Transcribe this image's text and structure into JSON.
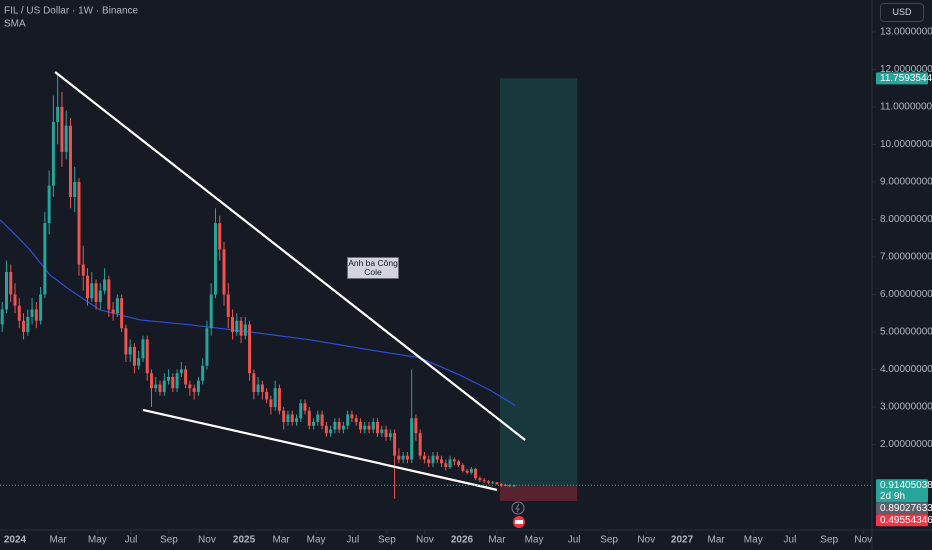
{
  "chart_data": {
    "type": "candlestick",
    "title": "FIL / US Dollar · 1W · Binance",
    "indicator_label": "SMA",
    "currency": "USD",
    "annotation": "Anh ba Công Cole",
    "up_color": "#26a69a",
    "down_color": "#ef5350",
    "xlim": [
      -3.52,
      200.94
    ],
    "ylim": [
      -0.28,
      13.85
    ],
    "xticks": [
      {
        "value": 0,
        "label": "2024"
      },
      {
        "value": 10.1,
        "label": "Mar"
      },
      {
        "value": 19.3,
        "label": "May"
      },
      {
        "value": 27.2,
        "label": "Jul"
      },
      {
        "value": 36.1,
        "label": "Sep"
      },
      {
        "value": 45.0,
        "label": "Nov"
      },
      {
        "value": 53.7,
        "label": "2025"
      },
      {
        "value": 62.4,
        "label": "Mar"
      },
      {
        "value": 70.6,
        "label": "May"
      },
      {
        "value": 79.2,
        "label": "Jul"
      },
      {
        "value": 87.2,
        "label": "Sep"
      },
      {
        "value": 96.1,
        "label": "Nov"
      },
      {
        "value": 104.8,
        "label": "2026"
      },
      {
        "value": 113.0,
        "label": "Mar"
      },
      {
        "value": 121.7,
        "label": "May"
      },
      {
        "value": 131.1,
        "label": "Jul"
      },
      {
        "value": 139.3,
        "label": "Sep"
      },
      {
        "value": 148.0,
        "label": "Nov"
      },
      {
        "value": 156.4,
        "label": "2027"
      },
      {
        "value": 164.4,
        "label": "Mar"
      },
      {
        "value": 173.1,
        "label": "May"
      },
      {
        "value": 181.7,
        "label": "Jul"
      },
      {
        "value": 190.9,
        "label": "Sep"
      },
      {
        "value": 198.9,
        "label": "Nov"
      }
    ],
    "yticks": [
      {
        "value": 2,
        "label": "2.00000000"
      },
      {
        "value": 3,
        "label": "3.00000000"
      },
      {
        "value": 4,
        "label": "4.00000000"
      },
      {
        "value": 5,
        "label": "5.00000000"
      },
      {
        "value": 6,
        "label": "6.00000000"
      },
      {
        "value": 7,
        "label": "7.00000000"
      },
      {
        "value": 8,
        "label": "8.00000000"
      },
      {
        "value": 9,
        "label": "9.00000000"
      },
      {
        "value": 10,
        "label": "10.00000000"
      },
      {
        "value": 11,
        "label": "11.00000000"
      },
      {
        "value": 12,
        "label": "12.00000000"
      },
      {
        "value": 13,
        "label": "13.00000000"
      }
    ],
    "x": [
      -3,
      -2,
      -1,
      0,
      1,
      2,
      3,
      4,
      5,
      6,
      7,
      8,
      9,
      10,
      11,
      12,
      13,
      14,
      15,
      16,
      17,
      18,
      19,
      20,
      21,
      22,
      23,
      24,
      25,
      26,
      27,
      28,
      29,
      30,
      31,
      32,
      33,
      34,
      35,
      36,
      37,
      38,
      39,
      40,
      41,
      42,
      43,
      44,
      45,
      46,
      47,
      48,
      49,
      50,
      51,
      52,
      53,
      54,
      55,
      56,
      57,
      58,
      59,
      60,
      61,
      62,
      63,
      64,
      65,
      66,
      67,
      68,
      69,
      70,
      71,
      72,
      73,
      74,
      75,
      76,
      77,
      78,
      79,
      80,
      81,
      82,
      83,
      84,
      85,
      86,
      87,
      88,
      89,
      90,
      91,
      92,
      93,
      94,
      95,
      96,
      97,
      98,
      99,
      100,
      101,
      102,
      103,
      104,
      105,
      106,
      107,
      108,
      109,
      110,
      111,
      112,
      113,
      114,
      115,
      116,
      117
    ],
    "ohlc": [
      [
        5.2,
        5.8,
        5.0,
        5.6
      ],
      [
        5.6,
        6.9,
        5.5,
        6.6
      ],
      [
        6.6,
        6.8,
        5.8,
        6.0
      ],
      [
        6.0,
        6.3,
        5.5,
        5.7
      ],
      [
        5.7,
        5.9,
        5.1,
        5.3
      ],
      [
        5.3,
        5.5,
        4.8,
        5.0
      ],
      [
        5.0,
        5.6,
        4.9,
        5.4
      ],
      [
        5.4,
        5.9,
        5.2,
        5.6
      ],
      [
        5.6,
        5.8,
        5.1,
        5.3
      ],
      [
        5.3,
        6.2,
        5.2,
        6.0
      ],
      [
        6.0,
        8.2,
        5.9,
        7.9
      ],
      [
        7.9,
        9.3,
        7.6,
        8.9
      ],
      [
        8.9,
        11.3,
        8.6,
        10.6
      ],
      [
        10.6,
        11.9,
        10.0,
        11.0
      ],
      [
        11.0,
        11.4,
        9.4,
        9.8
      ],
      [
        9.8,
        10.9,
        9.6,
        10.5
      ],
      [
        10.5,
        10.7,
        8.3,
        8.6
      ],
      [
        8.6,
        9.4,
        8.2,
        9.0
      ],
      [
        9.0,
        9.1,
        6.5,
        6.8
      ],
      [
        6.8,
        7.3,
        6.1,
        6.5
      ],
      [
        6.5,
        6.7,
        5.7,
        5.9
      ],
      [
        5.9,
        6.6,
        5.8,
        6.3
      ],
      [
        6.3,
        6.4,
        5.6,
        5.8
      ],
      [
        5.8,
        6.3,
        5.6,
        6.1
      ],
      [
        6.1,
        6.7,
        6.0,
        6.4
      ],
      [
        6.4,
        6.5,
        5.4,
        5.6
      ],
      [
        5.6,
        5.8,
        5.3,
        5.5
      ],
      [
        5.5,
        6.0,
        5.4,
        5.9
      ],
      [
        5.9,
        6.0,
        5.0,
        5.1
      ],
      [
        5.1,
        5.2,
        4.2,
        4.4
      ],
      [
        4.4,
        4.8,
        4.2,
        4.6
      ],
      [
        4.6,
        4.7,
        3.9,
        4.1
      ],
      [
        4.1,
        4.5,
        4.0,
        4.3
      ],
      [
        4.3,
        4.9,
        4.2,
        4.8
      ],
      [
        4.8,
        4.9,
        3.7,
        3.9
      ],
      [
        3.9,
        4.0,
        3.0,
        3.5
      ],
      [
        3.5,
        3.8,
        3.4,
        3.6
      ],
      [
        3.6,
        3.7,
        3.3,
        3.4
      ],
      [
        3.4,
        3.9,
        3.3,
        3.7
      ],
      [
        3.7,
        4.0,
        3.6,
        3.8
      ],
      [
        3.8,
        3.9,
        3.4,
        3.5
      ],
      [
        3.5,
        4.0,
        3.4,
        3.9
      ],
      [
        3.9,
        4.2,
        3.8,
        4.0
      ],
      [
        4.0,
        4.1,
        3.5,
        3.6
      ],
      [
        3.6,
        3.7,
        3.3,
        3.5
      ],
      [
        3.5,
        3.6,
        3.2,
        3.4
      ],
      [
        3.4,
        3.8,
        3.3,
        3.7
      ],
      [
        3.7,
        4.3,
        3.6,
        4.1
      ],
      [
        4.1,
        5.3,
        4.0,
        5.1
      ],
      [
        5.1,
        6.3,
        4.9,
        6.0
      ],
      [
        6.0,
        8.3,
        5.9,
        7.9
      ],
      [
        7.9,
        8.1,
        6.9,
        7.2
      ],
      [
        7.2,
        7.4,
        5.7,
        6.0
      ],
      [
        6.0,
        6.3,
        5.1,
        5.4
      ],
      [
        5.4,
        5.6,
        4.8,
        5.0
      ],
      [
        5.0,
        5.5,
        4.9,
        5.3
      ],
      [
        5.3,
        5.4,
        4.7,
        4.9
      ],
      [
        4.9,
        5.4,
        4.8,
        5.2
      ],
      [
        5.2,
        5.3,
        3.7,
        3.9
      ],
      [
        3.9,
        4.0,
        3.2,
        3.4
      ],
      [
        3.4,
        3.8,
        3.3,
        3.6
      ],
      [
        3.6,
        3.7,
        3.2,
        3.4
      ],
      [
        3.4,
        3.5,
        3.1,
        3.2
      ],
      [
        3.2,
        3.3,
        2.8,
        3.0
      ],
      [
        3.0,
        3.7,
        2.9,
        3.5
      ],
      [
        3.5,
        3.6,
        2.8,
        2.9
      ],
      [
        2.9,
        3.0,
        2.4,
        2.6
      ],
      [
        2.6,
        2.9,
        2.5,
        2.8
      ],
      [
        2.8,
        2.9,
        2.5,
        2.6
      ],
      [
        2.6,
        2.8,
        2.5,
        2.7
      ],
      [
        2.7,
        3.2,
        2.6,
        3.1
      ],
      [
        3.1,
        3.2,
        2.8,
        2.9
      ],
      [
        2.9,
        3.0,
        2.4,
        2.5
      ],
      [
        2.5,
        2.7,
        2.4,
        2.6
      ],
      [
        2.6,
        2.9,
        2.5,
        2.8
      ],
      [
        2.8,
        2.9,
        2.4,
        2.5
      ],
      [
        2.5,
        2.6,
        2.2,
        2.3
      ],
      [
        2.3,
        2.5,
        2.2,
        2.4
      ],
      [
        2.4,
        2.7,
        2.3,
        2.6
      ],
      [
        2.6,
        2.7,
        2.3,
        2.4
      ],
      [
        2.4,
        2.6,
        2.3,
        2.5
      ],
      [
        2.5,
        2.9,
        2.4,
        2.8
      ],
      [
        2.8,
        2.9,
        2.6,
        2.7
      ],
      [
        2.7,
        2.8,
        2.5,
        2.6
      ],
      [
        2.6,
        2.7,
        2.3,
        2.4
      ],
      [
        2.4,
        2.6,
        2.3,
        2.5
      ],
      [
        2.5,
        2.6,
        2.3,
        2.4
      ],
      [
        2.4,
        2.7,
        2.3,
        2.6
      ],
      [
        2.6,
        2.7,
        2.2,
        2.3
      ],
      [
        2.3,
        2.5,
        2.2,
        2.4
      ],
      [
        2.4,
        2.5,
        2.1,
        2.2
      ],
      [
        2.2,
        2.4,
        2.1,
        2.3
      ],
      [
        2.3,
        2.4,
        0.55,
        1.7
      ],
      [
        1.7,
        1.9,
        1.5,
        1.6
      ],
      [
        1.6,
        1.8,
        1.5,
        1.7
      ],
      [
        1.7,
        1.8,
        1.5,
        1.6
      ],
      [
        1.6,
        4.0,
        1.5,
        2.7
      ],
      [
        2.7,
        2.8,
        2.1,
        2.3
      ],
      [
        2.3,
        2.4,
        1.6,
        1.7
      ],
      [
        1.7,
        1.8,
        1.5,
        1.6
      ],
      [
        1.6,
        1.7,
        1.4,
        1.5
      ],
      [
        1.5,
        1.8,
        1.4,
        1.7
      ],
      [
        1.7,
        1.8,
        1.5,
        1.6
      ],
      [
        1.6,
        1.7,
        1.4,
        1.5
      ],
      [
        1.5,
        1.6,
        1.3,
        1.4
      ],
      [
        1.4,
        1.7,
        1.35,
        1.6
      ],
      [
        1.6,
        1.65,
        1.45,
        1.55
      ],
      [
        1.55,
        1.6,
        1.4,
        1.45
      ],
      [
        1.45,
        1.5,
        1.25,
        1.3
      ],
      [
        1.3,
        1.35,
        1.2,
        1.25
      ],
      [
        1.25,
        1.4,
        1.2,
        1.35
      ],
      [
        1.35,
        1.38,
        1.05,
        1.1
      ],
      [
        1.1,
        1.15,
        1.0,
        1.05
      ],
      [
        1.05,
        1.1,
        0.98,
        1.02
      ],
      [
        1.02,
        1.05,
        0.94,
        0.98
      ],
      [
        0.98,
        1.03,
        0.95,
        0.99
      ],
      [
        0.99,
        1.0,
        0.92,
        0.95
      ],
      [
        0.95,
        0.97,
        0.87,
        0.9
      ],
      [
        0.9,
        0.95,
        0.88,
        0.92
      ],
      [
        0.92,
        0.94,
        0.86,
        0.89
      ],
      [
        0.89,
        0.93,
        0.87,
        0.914
      ]
    ],
    "sma": {
      "color": "#2f4fd8",
      "x": [
        -3.5,
        0,
        3.5,
        8.2,
        12.9,
        19.9,
        29.3,
        41.0,
        55.1,
        69.2,
        83.2,
        95.0,
        104.3,
        111.4,
        117.2
      ],
      "values": [
        7.99,
        7.6,
        7.19,
        6.52,
        6.12,
        5.59,
        5.32,
        5.19,
        5.0,
        4.79,
        4.52,
        4.31,
        3.85,
        3.45,
        3.05
      ]
    },
    "trendlines": [
      {
        "x": [
          9.4,
          119.6
        ],
        "values": [
          11.93,
          2.12
        ]
      },
      {
        "x": [
          30.0,
          113.0
        ],
        "values": [
          2.92,
          0.79
        ]
      }
    ],
    "current_price": {
      "value": 0.91405038,
      "label": "0.91405038",
      "countdown": "2d 9h",
      "color": "#26a69a"
    },
    "position": {
      "x": [
        113.7,
        131.8
      ],
      "target": {
        "value": 11.7593544,
        "label": "11.75935440",
        "color": "#26a69a"
      },
      "entry": {
        "value": 0.89027633,
        "label": "0.89027633",
        "color": "#5d606b"
      },
      "stop": {
        "value": 0.49554346,
        "label": "0.49554346",
        "color": "#f23645"
      }
    }
  }
}
